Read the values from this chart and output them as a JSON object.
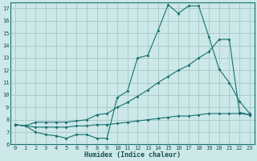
{
  "title": "",
  "xlabel": "Humidex (Indice chaleur)",
  "bg_color": "#cce8e8",
  "grid_color": "#aacccc",
  "line_color": "#1a7070",
  "xlim": [
    -0.5,
    23.5
  ],
  "ylim": [
    6,
    17.5
  ],
  "xticks": [
    0,
    1,
    2,
    3,
    4,
    5,
    6,
    7,
    8,
    9,
    10,
    11,
    12,
    13,
    14,
    15,
    16,
    17,
    18,
    19,
    20,
    21,
    22,
    23
  ],
  "yticks": [
    6,
    7,
    8,
    9,
    10,
    11,
    12,
    13,
    14,
    15,
    16,
    17
  ],
  "line1_x": [
    0,
    1,
    2,
    3,
    4,
    5,
    6,
    7,
    8,
    9,
    10,
    11,
    12,
    13,
    14,
    15,
    16,
    17,
    18,
    19,
    20,
    21,
    22,
    23
  ],
  "line1_y": [
    7.6,
    7.5,
    7.0,
    6.8,
    6.7,
    6.5,
    6.8,
    6.8,
    6.5,
    6.5,
    9.8,
    10.3,
    13.0,
    13.2,
    15.2,
    17.3,
    16.6,
    17.2,
    17.2,
    14.7,
    12.1,
    11.0,
    9.5,
    8.5
  ],
  "line2_x": [
    0,
    1,
    2,
    3,
    4,
    5,
    6,
    7,
    8,
    9,
    10,
    11,
    12,
    13,
    14,
    15,
    16,
    17,
    18,
    19,
    20,
    21,
    22,
    23
  ],
  "line2_y": [
    7.6,
    7.5,
    7.8,
    7.8,
    7.8,
    7.8,
    7.9,
    8.0,
    8.4,
    8.5,
    9.0,
    9.4,
    9.9,
    10.4,
    11.0,
    11.5,
    12.0,
    12.4,
    13.0,
    13.5,
    14.5,
    14.5,
    8.6,
    8.4
  ],
  "line3_x": [
    0,
    1,
    2,
    3,
    4,
    5,
    6,
    7,
    8,
    9,
    10,
    11,
    12,
    13,
    14,
    15,
    16,
    17,
    18,
    19,
    20,
    21,
    22,
    23
  ],
  "line3_y": [
    7.6,
    7.5,
    7.4,
    7.4,
    7.4,
    7.4,
    7.5,
    7.5,
    7.6,
    7.6,
    7.7,
    7.8,
    7.9,
    8.0,
    8.1,
    8.2,
    8.3,
    8.3,
    8.4,
    8.5,
    8.5,
    8.5,
    8.5,
    8.4
  ]
}
